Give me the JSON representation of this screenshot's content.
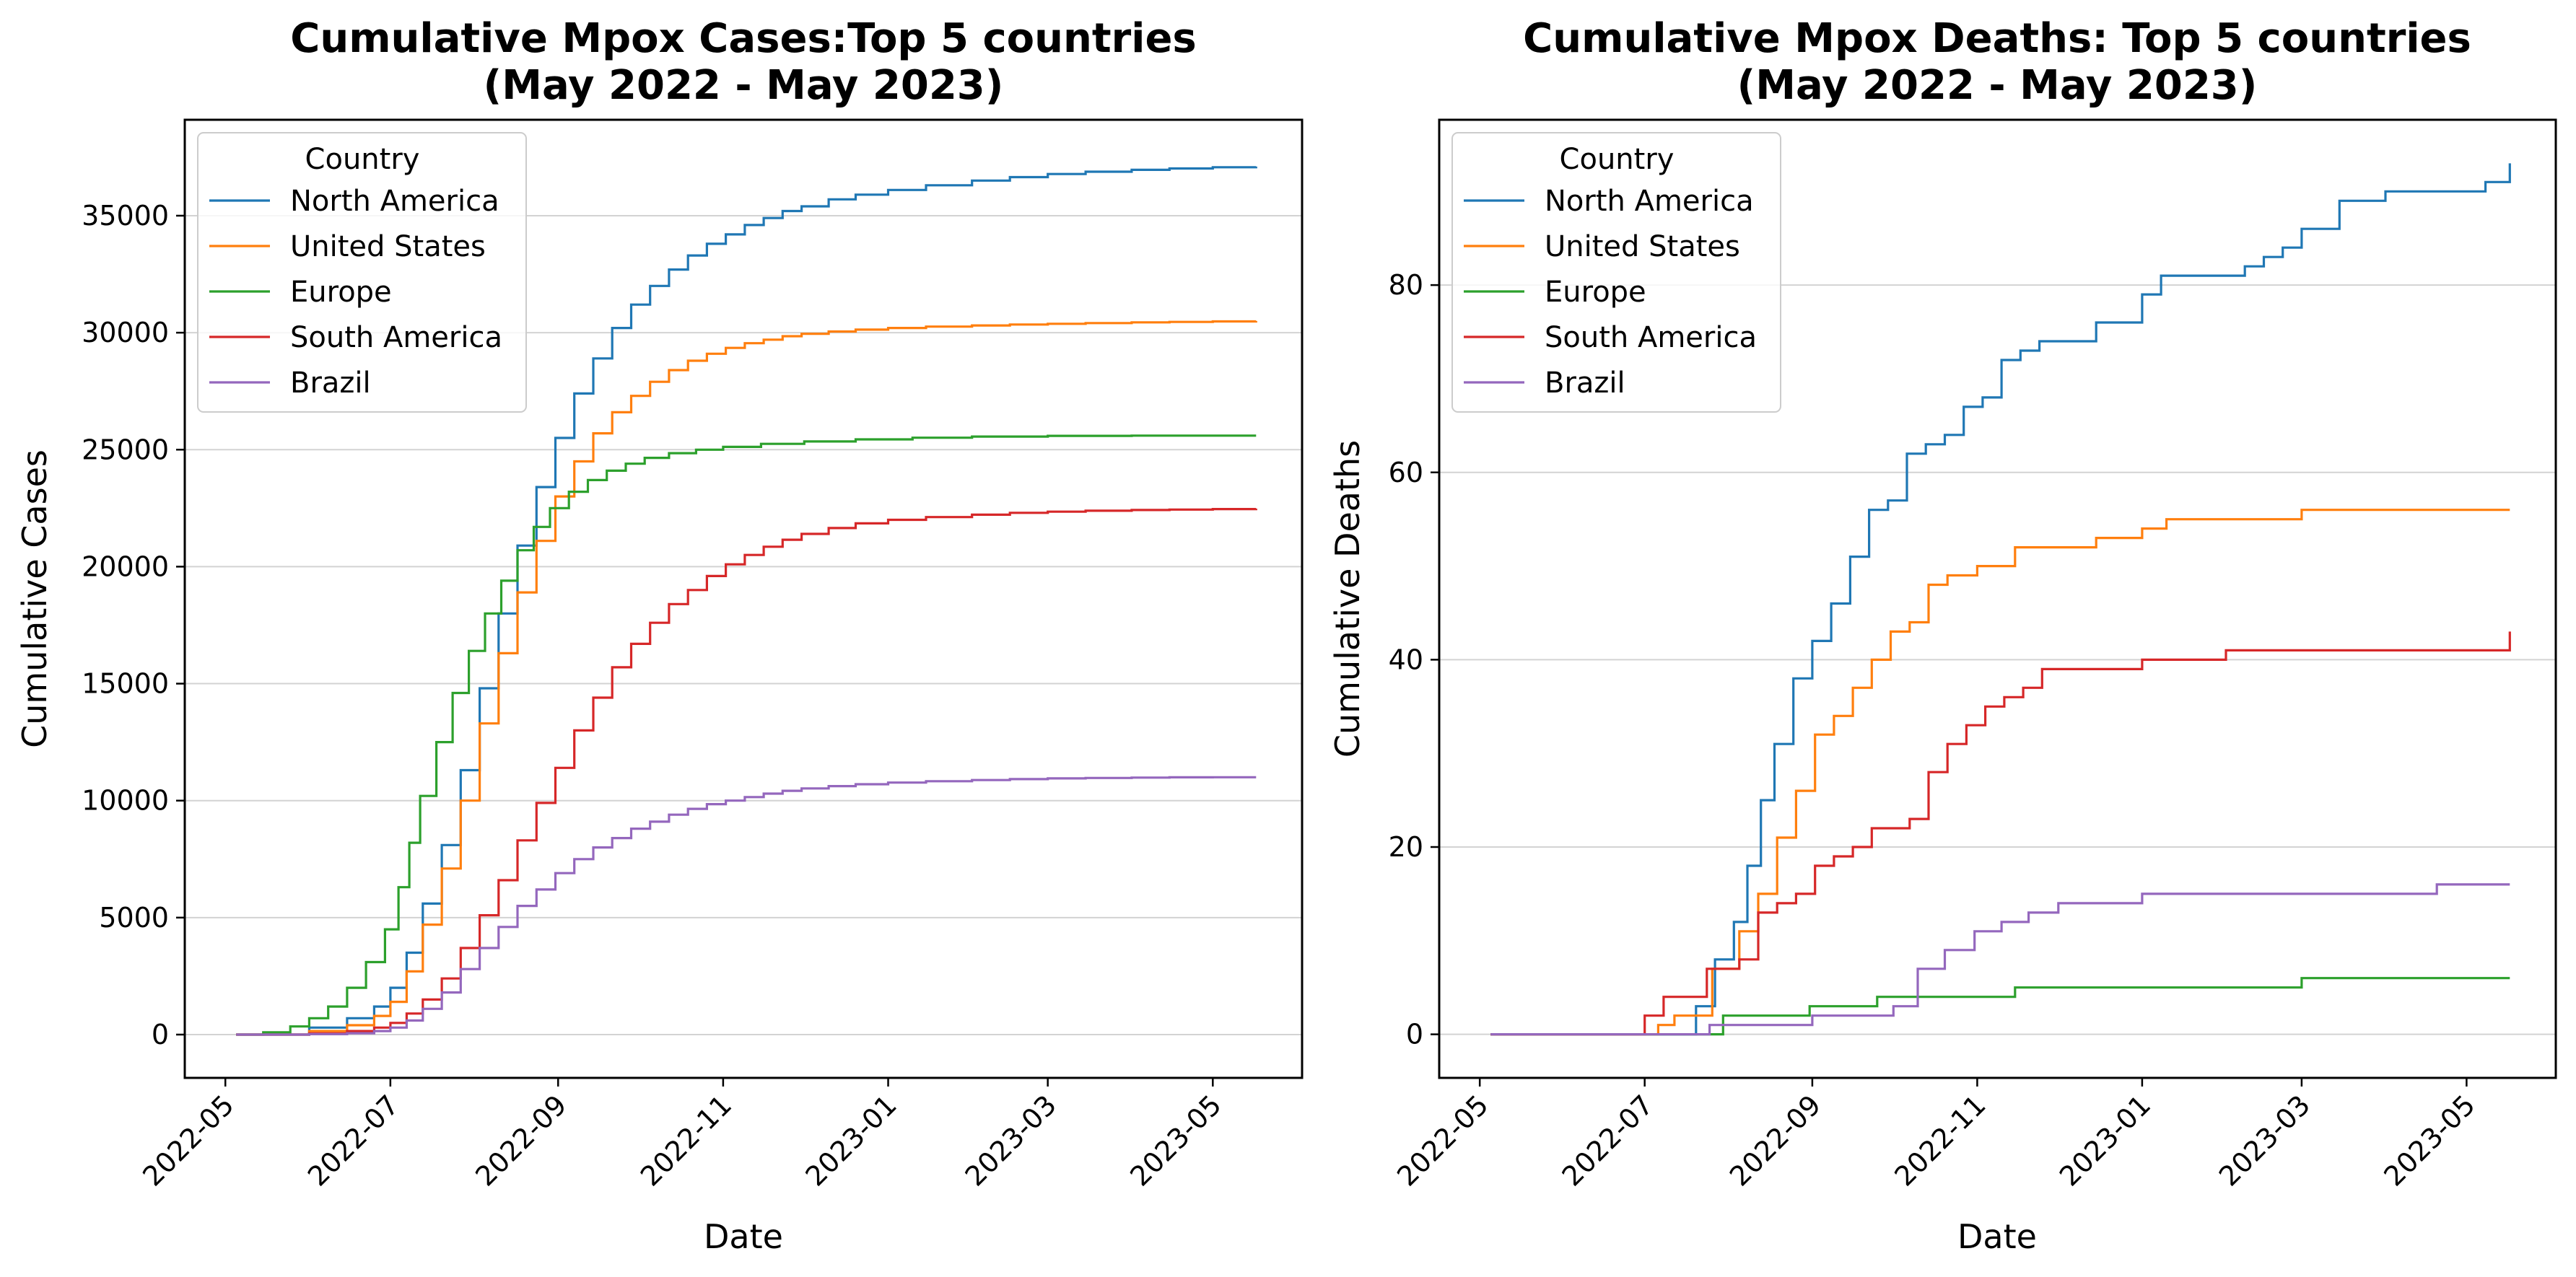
{
  "figure": {
    "background": "#ffffff",
    "grid_color": "#d3d3d3",
    "axis_color": "#000000"
  },
  "chart_data": [
    {
      "type": "line",
      "title_lines": [
        "Cumulative Mpox Cases:Top 5 countries",
        "(May 2022 - May 2023)"
      ],
      "xlabel": "Date",
      "ylabel": "Cumulative Cases",
      "x_tick_labels": [
        "2022-05",
        "2022-07",
        "2022-09",
        "2022-11",
        "2023-01",
        "2023-03",
        "2023-05"
      ],
      "y_ticks": [
        0,
        5000,
        10000,
        15000,
        20000,
        25000,
        30000,
        35000
      ],
      "xlim": [
        "2022-04-16",
        "2023-06-03"
      ],
      "ylim": [
        -1850,
        39100
      ],
      "grid": "horizontal",
      "legend": {
        "title": "Country",
        "placement": "top-left"
      },
      "series": [
        {
          "name": "North America",
          "color": "#1f77b4",
          "x": [
            "2022-05-05",
            "2022-06-01",
            "2022-06-15",
            "2022-06-25",
            "2022-07-01",
            "2022-07-07",
            "2022-07-13",
            "2022-07-20",
            "2022-07-27",
            "2022-08-03",
            "2022-08-10",
            "2022-08-17",
            "2022-08-24",
            "2022-08-31",
            "2022-09-07",
            "2022-09-14",
            "2022-09-21",
            "2022-09-28",
            "2022-10-05",
            "2022-10-12",
            "2022-10-19",
            "2022-10-26",
            "2022-11-02",
            "2022-11-09",
            "2022-11-16",
            "2022-11-23",
            "2022-11-30",
            "2022-12-10",
            "2022-12-20",
            "2023-01-01",
            "2023-01-15",
            "2023-02-01",
            "2023-02-15",
            "2023-03-01",
            "2023-03-15",
            "2023-04-01",
            "2023-04-15",
            "2023-05-01",
            "2023-05-17"
          ],
          "values": [
            0,
            300,
            700,
            1200,
            2000,
            3500,
            5600,
            8100,
            11300,
            14800,
            18000,
            20900,
            23400,
            25500,
            27400,
            28900,
            30200,
            31200,
            32000,
            32700,
            33300,
            33800,
            34200,
            34600,
            34900,
            35200,
            35400,
            35700,
            35900,
            36100,
            36300,
            36500,
            36650,
            36780,
            36880,
            36960,
            37020,
            37070,
            37100
          ]
        },
        {
          "name": "United States",
          "color": "#ff7f0e",
          "x": [
            "2022-05-05",
            "2022-06-01",
            "2022-06-15",
            "2022-06-25",
            "2022-07-01",
            "2022-07-07",
            "2022-07-13",
            "2022-07-20",
            "2022-07-27",
            "2022-08-03",
            "2022-08-10",
            "2022-08-17",
            "2022-08-24",
            "2022-08-31",
            "2022-09-07",
            "2022-09-14",
            "2022-09-21",
            "2022-09-28",
            "2022-10-05",
            "2022-10-12",
            "2022-10-19",
            "2022-10-26",
            "2022-11-02",
            "2022-11-09",
            "2022-11-16",
            "2022-11-23",
            "2022-11-30",
            "2022-12-10",
            "2022-12-20",
            "2023-01-01",
            "2023-01-15",
            "2023-02-01",
            "2023-02-15",
            "2023-03-01",
            "2023-03-15",
            "2023-04-01",
            "2023-04-15",
            "2023-05-01",
            "2023-05-17"
          ],
          "values": [
            0,
            150,
            400,
            800,
            1400,
            2700,
            4700,
            7100,
            10000,
            13300,
            16300,
            18900,
            21100,
            23000,
            24500,
            25700,
            26600,
            27300,
            27900,
            28400,
            28800,
            29100,
            29350,
            29550,
            29700,
            29850,
            29950,
            30050,
            30130,
            30200,
            30260,
            30310,
            30350,
            30380,
            30410,
            30440,
            30460,
            30480,
            30500
          ]
        },
        {
          "name": "Europe",
          "color": "#2ca02c",
          "x": [
            "2022-05-05",
            "2022-05-15",
            "2022-05-25",
            "2022-06-01",
            "2022-06-08",
            "2022-06-15",
            "2022-06-22",
            "2022-06-29",
            "2022-07-04",
            "2022-07-08",
            "2022-07-12",
            "2022-07-18",
            "2022-07-24",
            "2022-07-30",
            "2022-08-05",
            "2022-08-11",
            "2022-08-17",
            "2022-08-23",
            "2022-08-29",
            "2022-09-05",
            "2022-09-12",
            "2022-09-19",
            "2022-09-26",
            "2022-10-03",
            "2022-10-12",
            "2022-10-22",
            "2022-11-01",
            "2022-11-15",
            "2022-12-01",
            "2022-12-20",
            "2023-01-10",
            "2023-02-01",
            "2023-03-01",
            "2023-04-01",
            "2023-05-17"
          ],
          "values": [
            0,
            100,
            350,
            700,
            1200,
            2000,
            3100,
            4500,
            6300,
            8200,
            10200,
            12500,
            14600,
            16400,
            18000,
            19400,
            20700,
            21700,
            22500,
            23200,
            23700,
            24100,
            24400,
            24650,
            24850,
            25000,
            25120,
            25250,
            25350,
            25440,
            25510,
            25560,
            25590,
            25600,
            25600
          ]
        },
        {
          "name": "South America",
          "color": "#d62728",
          "x": [
            "2022-05-05",
            "2022-06-01",
            "2022-06-15",
            "2022-06-25",
            "2022-07-01",
            "2022-07-07",
            "2022-07-13",
            "2022-07-20",
            "2022-07-27",
            "2022-08-03",
            "2022-08-10",
            "2022-08-17",
            "2022-08-24",
            "2022-08-31",
            "2022-09-07",
            "2022-09-14",
            "2022-09-21",
            "2022-09-28",
            "2022-10-05",
            "2022-10-12",
            "2022-10-19",
            "2022-10-26",
            "2022-11-02",
            "2022-11-09",
            "2022-11-16",
            "2022-11-23",
            "2022-11-30",
            "2022-12-10",
            "2022-12-20",
            "2023-01-01",
            "2023-01-15",
            "2023-02-01",
            "2023-02-15",
            "2023-03-01",
            "2023-03-15",
            "2023-04-01",
            "2023-04-15",
            "2023-05-01",
            "2023-05-17"
          ],
          "values": [
            0,
            50,
            150,
            300,
            500,
            900,
            1500,
            2400,
            3700,
            5100,
            6600,
            8300,
            9900,
            11400,
            13000,
            14400,
            15700,
            16700,
            17600,
            18400,
            19000,
            19600,
            20100,
            20500,
            20850,
            21150,
            21400,
            21650,
            21850,
            22000,
            22120,
            22220,
            22300,
            22350,
            22390,
            22420,
            22440,
            22460,
            22480
          ]
        },
        {
          "name": "Brazil",
          "color": "#9467bd",
          "x": [
            "2022-05-05",
            "2022-06-01",
            "2022-06-15",
            "2022-06-25",
            "2022-07-01",
            "2022-07-07",
            "2022-07-13",
            "2022-07-20",
            "2022-07-27",
            "2022-08-03",
            "2022-08-10",
            "2022-08-17",
            "2022-08-24",
            "2022-08-31",
            "2022-09-07",
            "2022-09-14",
            "2022-09-21",
            "2022-09-28",
            "2022-10-05",
            "2022-10-12",
            "2022-10-19",
            "2022-10-26",
            "2022-11-02",
            "2022-11-09",
            "2022-11-16",
            "2022-11-23",
            "2022-11-30",
            "2022-12-10",
            "2022-12-20",
            "2023-01-01",
            "2023-01-15",
            "2023-02-01",
            "2023-02-15",
            "2023-03-01",
            "2023-03-15",
            "2023-04-01",
            "2023-04-15",
            "2023-05-01",
            "2023-05-17"
          ],
          "values": [
            0,
            20,
            60,
            150,
            300,
            600,
            1100,
            1800,
            2800,
            3700,
            4600,
            5500,
            6200,
            6900,
            7500,
            8000,
            8400,
            8800,
            9100,
            9400,
            9650,
            9850,
            10000,
            10150,
            10300,
            10420,
            10520,
            10620,
            10700,
            10770,
            10830,
            10880,
            10920,
            10950,
            10970,
            10985,
            10995,
            11000,
            11000
          ]
        }
      ]
    },
    {
      "type": "line",
      "title_lines": [
        "Cumulative Mpox Deaths: Top 5 countries",
        "(May 2022 - May 2023)"
      ],
      "xlabel": "Date",
      "ylabel": "Cumulative Deaths",
      "x_tick_labels": [
        "2022-05",
        "2022-07",
        "2022-09",
        "2022-11",
        "2023-01",
        "2023-03",
        "2023-05"
      ],
      "y_ticks": [
        0,
        20,
        40,
        60,
        80
      ],
      "xlim": [
        "2022-04-16",
        "2023-06-03"
      ],
      "ylim": [
        -4.65,
        97.65
      ],
      "grid": "horizontal",
      "legend": {
        "title": "Country",
        "placement": "top-left"
      },
      "series": [
        {
          "name": "North America",
          "color": "#1f77b4",
          "x": [
            "2022-05-05",
            "2022-07-20",
            "2022-07-27",
            "2022-08-03",
            "2022-08-08",
            "2022-08-13",
            "2022-08-18",
            "2022-08-25",
            "2022-09-01",
            "2022-09-08",
            "2022-09-15",
            "2022-09-22",
            "2022-09-29",
            "2022-10-06",
            "2022-10-13",
            "2022-10-20",
            "2022-10-27",
            "2022-11-03",
            "2022-11-10",
            "2022-11-17",
            "2022-11-24",
            "2022-12-01",
            "2022-12-15",
            "2023-01-01",
            "2023-01-08",
            "2023-02-01",
            "2023-02-08",
            "2023-02-15",
            "2023-02-22",
            "2023-03-01",
            "2023-03-15",
            "2023-04-01",
            "2023-05-08",
            "2023-05-17"
          ],
          "values": [
            0,
            3,
            8,
            12,
            18,
            25,
            31,
            38,
            42,
            46,
            51,
            56,
            57,
            62,
            63,
            64,
            67,
            68,
            72,
            73,
            74,
            74,
            76,
            79,
            81,
            81,
            82,
            83,
            84,
            86,
            89,
            90,
            91,
            93
          ]
        },
        {
          "name": "United States",
          "color": "#ff7f0e",
          "x": [
            "2022-05-05",
            "2022-07-06",
            "2022-07-12",
            "2022-07-26",
            "2022-08-05",
            "2022-08-12",
            "2022-08-19",
            "2022-08-26",
            "2022-09-02",
            "2022-09-09",
            "2022-09-16",
            "2022-09-23",
            "2022-09-30",
            "2022-10-07",
            "2022-10-14",
            "2022-10-21",
            "2022-11-01",
            "2022-11-15",
            "2022-12-15",
            "2023-01-01",
            "2023-01-10",
            "2023-03-01",
            "2023-05-17"
          ],
          "values": [
            0,
            1,
            2,
            7,
            11,
            15,
            21,
            26,
            32,
            34,
            37,
            40,
            43,
            44,
            48,
            49,
            50,
            52,
            53,
            54,
            55,
            56,
            56
          ]
        },
        {
          "name": "Europe",
          "color": "#2ca02c",
          "x": [
            "2022-05-05",
            "2022-07-20",
            "2022-07-30",
            "2022-08-31",
            "2022-09-25",
            "2022-11-15",
            "2023-03-01",
            "2023-05-17"
          ],
          "values": [
            0,
            0,
            2,
            3,
            4,
            5,
            6,
            6
          ]
        },
        {
          "name": "South America",
          "color": "#d62728",
          "x": [
            "2022-05-05",
            "2022-07-01",
            "2022-07-08",
            "2022-07-24",
            "2022-08-05",
            "2022-08-12",
            "2022-08-19",
            "2022-08-26",
            "2022-09-02",
            "2022-09-09",
            "2022-09-16",
            "2022-09-23",
            "2022-10-07",
            "2022-10-14",
            "2022-10-21",
            "2022-10-28",
            "2022-11-04",
            "2022-11-11",
            "2022-11-18",
            "2022-11-25",
            "2023-01-01",
            "2023-02-01",
            "2023-05-17"
          ],
          "values": [
            0,
            2,
            4,
            7,
            8,
            13,
            14,
            15,
            18,
            19,
            20,
            22,
            23,
            28,
            31,
            33,
            35,
            36,
            37,
            39,
            40,
            41,
            43
          ]
        },
        {
          "name": "Brazil",
          "color": "#9467bd",
          "x": [
            "2022-05-05",
            "2022-07-25",
            "2022-09-01",
            "2022-10-01",
            "2022-10-10",
            "2022-10-20",
            "2022-10-31",
            "2022-11-10",
            "2022-11-20",
            "2022-12-01",
            "2023-01-01",
            "2023-04-20",
            "2023-05-17"
          ],
          "values": [
            0,
            1,
            2,
            3,
            7,
            9,
            11,
            12,
            13,
            14,
            15,
            16,
            16
          ]
        }
      ]
    }
  ]
}
